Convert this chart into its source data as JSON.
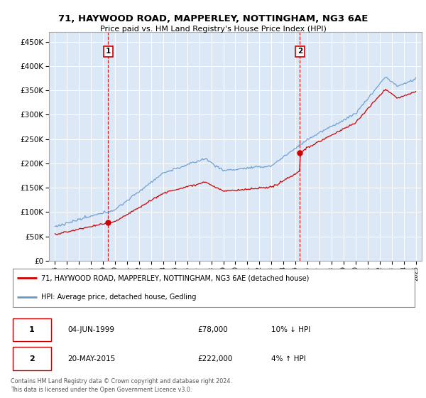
{
  "title1": "71, HAYWOOD ROAD, MAPPERLEY, NOTTINGHAM, NG3 6AE",
  "title2": "Price paid vs. HM Land Registry's House Price Index (HPI)",
  "plot_bg_color": "#dce8f5",
  "ylim": [
    0,
    470000
  ],
  "yticks": [
    0,
    50000,
    100000,
    150000,
    200000,
    250000,
    300000,
    350000,
    400000,
    450000
  ],
  "ytick_labels": [
    "£0",
    "£50K",
    "£100K",
    "£150K",
    "£200K",
    "£250K",
    "£300K",
    "£350K",
    "£400K",
    "£450K"
  ],
  "sale1_year": 1999.42,
  "sale1_price": 78000,
  "sale2_year": 2015.37,
  "sale2_price": 222000,
  "legend_line1": "71, HAYWOOD ROAD, MAPPERLEY, NOTTINGHAM, NG3 6AE (detached house)",
  "legend_line2": "HPI: Average price, detached house, Gedling",
  "sale_color": "#cc0000",
  "hpi_color": "#6699cc",
  "vline_color": "#cc0000",
  "footer": "Contains HM Land Registry data © Crown copyright and database right 2024.\nThis data is licensed under the Open Government Licence v3.0."
}
